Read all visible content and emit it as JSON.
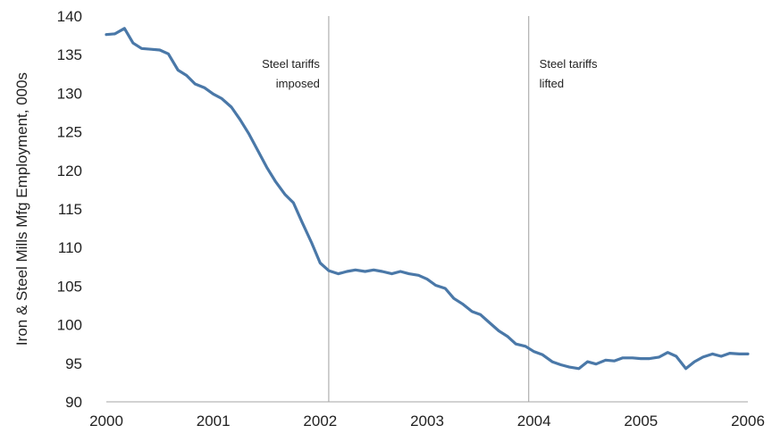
{
  "chart_data": {
    "type": "line",
    "title": "",
    "xlabel": "",
    "ylabel": "Iron & Steel Mills Mfg Employment, 000s",
    "xlim": [
      2000,
      2006
    ],
    "ylim": [
      90,
      140
    ],
    "x_ticks": [
      "2000",
      "2001",
      "2002",
      "2003",
      "2004",
      "2005",
      "2006"
    ],
    "y_ticks": [
      "90",
      "95",
      "100",
      "105",
      "110",
      "115",
      "120",
      "125",
      "130",
      "135",
      "140"
    ],
    "grid": false,
    "color": "#4a78a8",
    "vlines": [
      {
        "x": 2002.08,
        "label_lines": [
          "Steel tariffs",
          "imposed"
        ],
        "label_side": "left"
      },
      {
        "x": 2003.95,
        "label_lines": [
          "Steel tariffs",
          "lifted"
        ],
        "label_side": "right"
      }
    ],
    "series": [
      {
        "name": "",
        "x": [
          2000.0,
          2000.08,
          2000.17,
          2000.25,
          2000.33,
          2000.42,
          2000.5,
          2000.58,
          2000.67,
          2000.75,
          2000.83,
          2000.92,
          2001.0,
          2001.08,
          2001.17,
          2001.25,
          2001.33,
          2001.42,
          2001.5,
          2001.58,
          2001.67,
          2001.75,
          2001.83,
          2001.92,
          2002.0,
          2002.08,
          2002.17,
          2002.25,
          2002.33,
          2002.42,
          2002.5,
          2002.58,
          2002.67,
          2002.75,
          2002.83,
          2002.92,
          2003.0,
          2003.08,
          2003.17,
          2003.25,
          2003.33,
          2003.42,
          2003.5,
          2003.58,
          2003.67,
          2003.75,
          2003.83,
          2003.92,
          2004.0,
          2004.08,
          2004.17,
          2004.25,
          2004.33,
          2004.42,
          2004.5,
          2004.58,
          2004.67,
          2004.75,
          2004.83,
          2004.92,
          2005.0,
          2005.08,
          2005.17,
          2005.25,
          2005.33,
          2005.42,
          2005.5,
          2005.58,
          2005.67,
          2005.75,
          2005.83,
          2005.92,
          2006.0
        ],
        "y": [
          137.6,
          137.7,
          138.4,
          136.5,
          135.8,
          135.7,
          135.6,
          135.1,
          133.0,
          132.3,
          131.2,
          130.7,
          129.9,
          129.3,
          128.2,
          126.6,
          124.8,
          122.5,
          120.4,
          118.6,
          116.9,
          115.8,
          113.3,
          110.6,
          108.0,
          107.0,
          106.6,
          106.9,
          107.1,
          106.9,
          107.1,
          106.9,
          106.6,
          106.9,
          106.6,
          106.4,
          105.9,
          105.1,
          104.7,
          103.4,
          102.7,
          101.7,
          101.3,
          100.3,
          99.2,
          98.5,
          97.5,
          97.2,
          96.5,
          96.1,
          95.2,
          94.8,
          94.5,
          94.3,
          95.2,
          94.9,
          95.4,
          95.3,
          95.7,
          95.7,
          95.6,
          95.6,
          95.8,
          96.4,
          95.9,
          94.3,
          95.2,
          95.8,
          96.2,
          95.9,
          96.3,
          96.2,
          96.2
        ]
      }
    ]
  }
}
